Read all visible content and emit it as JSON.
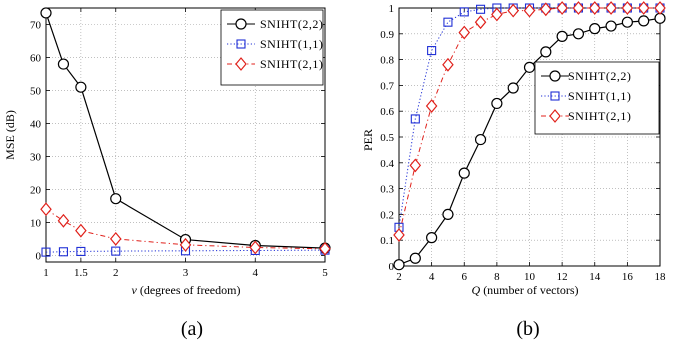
{
  "chart_data": [
    {
      "type": "line",
      "caption": "(a)",
      "xlabel_symbol": "ν",
      "xlabel": "(degrees of freedom)",
      "ylabel": "MSE (dB)",
      "xlim": [
        1,
        5
      ],
      "ylim": [
        -2,
        75
      ],
      "xticks": [
        1,
        1.5,
        2,
        3,
        4,
        5
      ],
      "yticks": [
        0,
        10,
        20,
        30,
        40,
        50,
        60,
        70
      ],
      "grid": true,
      "legend_position": "top-right",
      "series": [
        {
          "name": "SNIHT(2,2)",
          "color": "#000000",
          "marker": "circle",
          "dash": "solid",
          "x": [
            1,
            1.25,
            1.5,
            2,
            3,
            4,
            5
          ],
          "y": [
            73.5,
            58,
            51,
            17.2,
            4.8,
            3,
            2.2
          ]
        },
        {
          "name": "SNIHT(1,1)",
          "color": "#1f2fd6",
          "marker": "square",
          "dash": "dotted",
          "x": [
            1,
            1.25,
            1.5,
            2,
            3,
            4,
            5
          ],
          "y": [
            1,
            1.1,
            1.2,
            1.3,
            1.4,
            1.5,
            1.6
          ]
        },
        {
          "name": "SNIHT(2,1)",
          "color": "#e0211b",
          "marker": "diamond",
          "dash": "dashdot",
          "x": [
            1,
            1.25,
            1.5,
            2,
            3,
            4,
            5
          ],
          "y": [
            14,
            10.5,
            7.5,
            5,
            3.2,
            2.4,
            2
          ]
        }
      ]
    },
    {
      "type": "line",
      "caption": "(b)",
      "xlabel_symbol": "Q",
      "xlabel": "(number of vectors)",
      "ylabel": "PER",
      "xlim": [
        2,
        18
      ],
      "ylim": [
        0,
        1
      ],
      "xticks": [
        2,
        4,
        6,
        8,
        10,
        12,
        14,
        16,
        18
      ],
      "yticks": [
        0,
        0.1,
        0.2,
        0.3,
        0.4,
        0.5,
        0.6,
        0.7,
        0.8,
        0.9,
        1
      ],
      "grid": true,
      "legend_position": "center-right",
      "series": [
        {
          "name": "SNIHT(2,2)",
          "color": "#000000",
          "marker": "circle",
          "dash": "solid",
          "x": [
            2,
            3,
            4,
            5,
            6,
            7,
            8,
            9,
            10,
            11,
            12,
            13,
            14,
            15,
            16,
            17,
            18
          ],
          "y": [
            0.005,
            0.03,
            0.11,
            0.2,
            0.36,
            0.49,
            0.63,
            0.69,
            0.77,
            0.83,
            0.89,
            0.9,
            0.92,
            0.93,
            0.945,
            0.95,
            0.96
          ]
        },
        {
          "name": "SNIHT(1,1)",
          "color": "#1f2fd6",
          "marker": "square",
          "dash": "dotted",
          "x": [
            2,
            3,
            4,
            5,
            6,
            7,
            8,
            9,
            10,
            11,
            12,
            13,
            14,
            15,
            16,
            17,
            18
          ],
          "y": [
            0.15,
            0.57,
            0.835,
            0.945,
            0.985,
            0.995,
            1,
            1,
            1,
            1,
            1,
            1,
            1,
            1,
            1,
            1,
            1
          ]
        },
        {
          "name": "SNIHT(2,1)",
          "color": "#e0211b",
          "marker": "diamond",
          "dash": "dashdot",
          "x": [
            2,
            3,
            4,
            5,
            6,
            7,
            8,
            9,
            10,
            11,
            12,
            13,
            14,
            15,
            16,
            17,
            18
          ],
          "y": [
            0.12,
            0.39,
            0.62,
            0.78,
            0.905,
            0.945,
            0.975,
            0.99,
            0.99,
            0.995,
            1,
            1,
            1,
            1,
            1,
            1,
            1
          ]
        }
      ]
    }
  ]
}
